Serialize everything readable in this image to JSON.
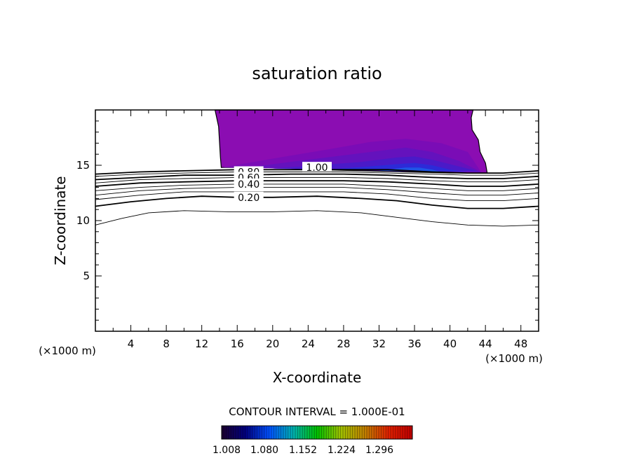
{
  "chart_data": {
    "type": "contour",
    "title": "saturation ratio",
    "xlabel": "X-coordinate",
    "ylabel": "Z-coordinate",
    "x_unit_left": "(×1000 m)",
    "x_unit_right": "(×1000 m)",
    "xlim": [
      0,
      50
    ],
    "ylim": [
      0,
      20
    ],
    "xticks": [
      4,
      8,
      12,
      16,
      20,
      24,
      28,
      32,
      36,
      40,
      44,
      48
    ],
    "yticks": [
      5,
      10,
      15
    ],
    "contour_interval_text": "CONTOUR INTERVAL = 1.000E-01",
    "contour_labels": [
      {
        "text": "1.00",
        "x": 25.0,
        "z": 14.8
      },
      {
        "text": "0.80",
        "x": 17.3,
        "z": 14.4
      },
      {
        "text": "0.60",
        "x": 17.3,
        "z": 13.9
      },
      {
        "text": "0.40",
        "x": 17.3,
        "z": 13.3
      },
      {
        "text": "0.20",
        "x": 17.3,
        "z": 12.1
      }
    ],
    "contour_lines": [
      {
        "level": 0.1,
        "bold": false,
        "points": [
          [
            0,
            9.6
          ],
          [
            3,
            10.2
          ],
          [
            6,
            10.7
          ],
          [
            10,
            10.9
          ],
          [
            15,
            10.8
          ],
          [
            20,
            10.8
          ],
          [
            25,
            10.9
          ],
          [
            30,
            10.7
          ],
          [
            34,
            10.3
          ],
          [
            38,
            9.9
          ],
          [
            42,
            9.6
          ],
          [
            46,
            9.5
          ],
          [
            50,
            9.6
          ]
        ]
      },
      {
        "level": 0.2,
        "bold": true,
        "points": [
          [
            0,
            11.3
          ],
          [
            4,
            11.7
          ],
          [
            8,
            12.0
          ],
          [
            12,
            12.2
          ],
          [
            16,
            12.1
          ],
          [
            20,
            12.1
          ],
          [
            25,
            12.2
          ],
          [
            30,
            12.0
          ],
          [
            34,
            11.8
          ],
          [
            38,
            11.4
          ],
          [
            42,
            11.1
          ],
          [
            46,
            11.1
          ],
          [
            50,
            11.3
          ]
        ]
      },
      {
        "level": 0.3,
        "bold": false,
        "points": [
          [
            0,
            11.9
          ],
          [
            5,
            12.3
          ],
          [
            10,
            12.6
          ],
          [
            16,
            12.6
          ],
          [
            22,
            12.6
          ],
          [
            28,
            12.6
          ],
          [
            33,
            12.4
          ],
          [
            38,
            12.0
          ],
          [
            42,
            11.8
          ],
          [
            46,
            11.8
          ],
          [
            50,
            12.0
          ]
        ]
      },
      {
        "level": 0.4,
        "bold": false,
        "points": [
          [
            0,
            12.3
          ],
          [
            5,
            12.7
          ],
          [
            10,
            12.9
          ],
          [
            16,
            13.0
          ],
          [
            22,
            13.0
          ],
          [
            28,
            13.0
          ],
          [
            33,
            12.8
          ],
          [
            38,
            12.5
          ],
          [
            42,
            12.3
          ],
          [
            46,
            12.3
          ],
          [
            50,
            12.5
          ]
        ]
      },
      {
        "level": 0.5,
        "bold": false,
        "points": [
          [
            0,
            12.7
          ],
          [
            5,
            13.0
          ],
          [
            10,
            13.2
          ],
          [
            16,
            13.3
          ],
          [
            22,
            13.3
          ],
          [
            28,
            13.3
          ],
          [
            33,
            13.1
          ],
          [
            38,
            12.9
          ],
          [
            42,
            12.7
          ],
          [
            46,
            12.7
          ],
          [
            50,
            12.9
          ]
        ]
      },
      {
        "level": 0.6,
        "bold": true,
        "points": [
          [
            0,
            13.1
          ],
          [
            5,
            13.4
          ],
          [
            10,
            13.5
          ],
          [
            16,
            13.6
          ],
          [
            22,
            13.6
          ],
          [
            28,
            13.6
          ],
          [
            33,
            13.5
          ],
          [
            38,
            13.3
          ],
          [
            42,
            13.1
          ],
          [
            46,
            13.1
          ],
          [
            50,
            13.3
          ]
        ]
      },
      {
        "level": 0.7,
        "bold": false,
        "points": [
          [
            0,
            13.4
          ],
          [
            5,
            13.7
          ],
          [
            10,
            13.8
          ],
          [
            16,
            13.9
          ],
          [
            22,
            13.9
          ],
          [
            28,
            13.9
          ],
          [
            33,
            13.8
          ],
          [
            38,
            13.6
          ],
          [
            42,
            13.5
          ],
          [
            46,
            13.5
          ],
          [
            50,
            13.7
          ]
        ]
      },
      {
        "level": 0.8,
        "bold": true,
        "points": [
          [
            0,
            13.7
          ],
          [
            5,
            13.9
          ],
          [
            10,
            14.1
          ],
          [
            16,
            14.1
          ],
          [
            22,
            14.2
          ],
          [
            28,
            14.2
          ],
          [
            33,
            14.1
          ],
          [
            38,
            13.9
          ],
          [
            42,
            13.8
          ],
          [
            46,
            13.8
          ],
          [
            50,
            14.0
          ]
        ]
      },
      {
        "level": 0.9,
        "bold": false,
        "points": [
          [
            0,
            14.0
          ],
          [
            5,
            14.2
          ],
          [
            10,
            14.3
          ],
          [
            16,
            14.4
          ],
          [
            22,
            14.4
          ],
          [
            28,
            14.4
          ],
          [
            33,
            14.3
          ],
          [
            38,
            14.2
          ],
          [
            42,
            14.1
          ],
          [
            46,
            14.1
          ],
          [
            50,
            14.3
          ]
        ]
      },
      {
        "level": 1.0,
        "bold": true,
        "points": [
          [
            0,
            14.2
          ],
          [
            5,
            14.4
          ],
          [
            10,
            14.5
          ],
          [
            16,
            14.6
          ],
          [
            22,
            14.6
          ],
          [
            28,
            14.6
          ],
          [
            33,
            14.6
          ],
          [
            38,
            14.4
          ],
          [
            42,
            14.3
          ],
          [
            46,
            14.3
          ],
          [
            50,
            14.5
          ]
        ]
      }
    ],
    "supersaturated_region": {
      "outline": [
        [
          13.5,
          20
        ],
        [
          13.9,
          18.5
        ],
        [
          14.1,
          15.8
        ],
        [
          14.2,
          14.8
        ],
        [
          20,
          14.8
        ],
        [
          25,
          14.6
        ],
        [
          30,
          14.5
        ],
        [
          35,
          14.4
        ],
        [
          40,
          14.3
        ],
        [
          44.2,
          14.3
        ],
        [
          44.0,
          15.2
        ],
        [
          43.4,
          16.2
        ],
        [
          43.2,
          17.3
        ],
        [
          42.5,
          18.2
        ],
        [
          42.4,
          19.3
        ],
        [
          42.6,
          20
        ]
      ],
      "colors": [
        "#8b0db2",
        "#7a0cb6",
        "#6412bd",
        "#4a1ac8",
        "#2d2ad8",
        "#1f55e6"
      ]
    },
    "colorbar": {
      "tick_labels": [
        "1.008",
        "1.080",
        "1.152",
        "1.224",
        "1.296"
      ],
      "colors": [
        "#1c0030",
        "#000080",
        "#0050ff",
        "#00b0b0",
        "#00c000",
        "#a0c000",
        "#c08000",
        "#e02000",
        "#c00000"
      ]
    }
  }
}
